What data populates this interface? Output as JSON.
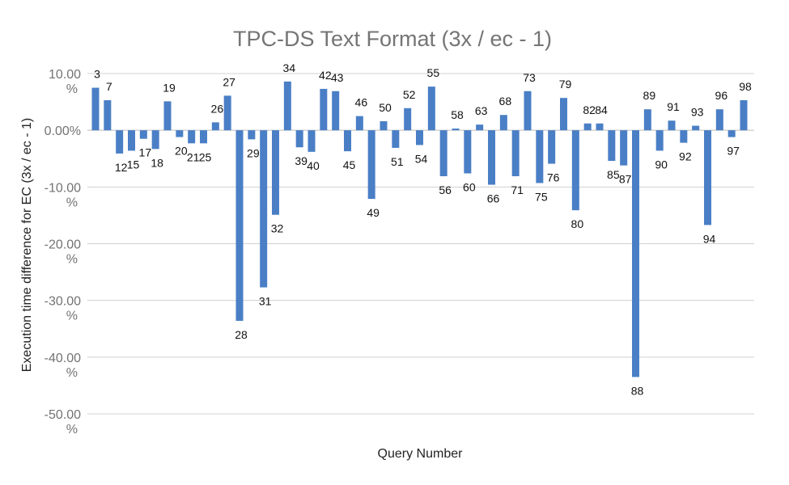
{
  "chart_data": {
    "type": "bar",
    "title": "TPC-DS Text Format (3x / ec - 1)",
    "xlabel": "Query Number",
    "ylabel": "Execution time difference for EC (3x / ec - 1)",
    "ylim": [
      -50,
      10
    ],
    "yticks": [
      {
        "value": 10,
        "label": "10.00 %"
      },
      {
        "value": 0,
        "label": "0.00%"
      },
      {
        "value": -10,
        "label": "-10.00 %"
      },
      {
        "value": -20,
        "label": "-20.00 %"
      },
      {
        "value": -30,
        "label": "-30.00 %"
      },
      {
        "value": -40,
        "label": "-40.00 %"
      },
      {
        "value": -50,
        "label": "-50.00 %"
      }
    ],
    "grid": true,
    "legend": "none",
    "bar_color": "#4a7fc6",
    "categories": [
      "3",
      "7",
      "12",
      "15",
      "17",
      "18",
      "19",
      "20",
      "21",
      "25",
      "26",
      "27",
      "28",
      "29",
      "31",
      "32",
      "34",
      "39",
      "40",
      "42",
      "43",
      "45",
      "46",
      "49",
      "50",
      "51",
      "52",
      "54",
      "55",
      "56",
      "58",
      "60",
      "63",
      "66",
      "68",
      "71",
      "73",
      "75",
      "76",
      "79",
      "80",
      "82",
      "84",
      "85",
      "87",
      "88",
      "89",
      "90",
      "91",
      "92",
      "93",
      "94",
      "96",
      "97",
      "98"
    ],
    "values": [
      7.5,
      5.3,
      -4.1,
      -3.6,
      -1.5,
      -3.3,
      5.1,
      -1.2,
      -2.3,
      -2.3,
      1.4,
      6.1,
      -33.6,
      -1.6,
      -27.7,
      -14.9,
      8.6,
      -3.0,
      -3.8,
      7.3,
      6.9,
      -3.7,
      2.5,
      -12.1,
      1.6,
      -3.1,
      3.9,
      -2.6,
      7.7,
      -8.1,
      0.3,
      -7.6,
      1.0,
      -9.6,
      2.7,
      -8.1,
      6.9,
      -9.3,
      -5.9,
      5.7,
      -14.1,
      1.2,
      1.2,
      -5.4,
      -6.2,
      -43.5,
      3.7,
      -3.6,
      1.7,
      -2.2,
      0.8,
      -16.7,
      3.7,
      -1.2,
      5.3
    ],
    "data_labels": [
      "3",
      "7",
      "12",
      "15",
      "17",
      "18",
      "19",
      "20",
      "21",
      "25",
      "26",
      "27",
      "28",
      "29",
      "31",
      "32",
      "34",
      "39",
      "40",
      "42",
      "43",
      "45",
      "46",
      "49",
      "50",
      "51",
      "52",
      "54",
      "55",
      "56",
      "58",
      "60",
      "63",
      "66",
      "68",
      "71",
      "73",
      "75",
      "76",
      "79",
      "80",
      "82",
      "84",
      "85",
      "87",
      "88",
      "89",
      "90",
      "91",
      "92",
      "93",
      "94",
      "96",
      "97",
      "98"
    ]
  }
}
